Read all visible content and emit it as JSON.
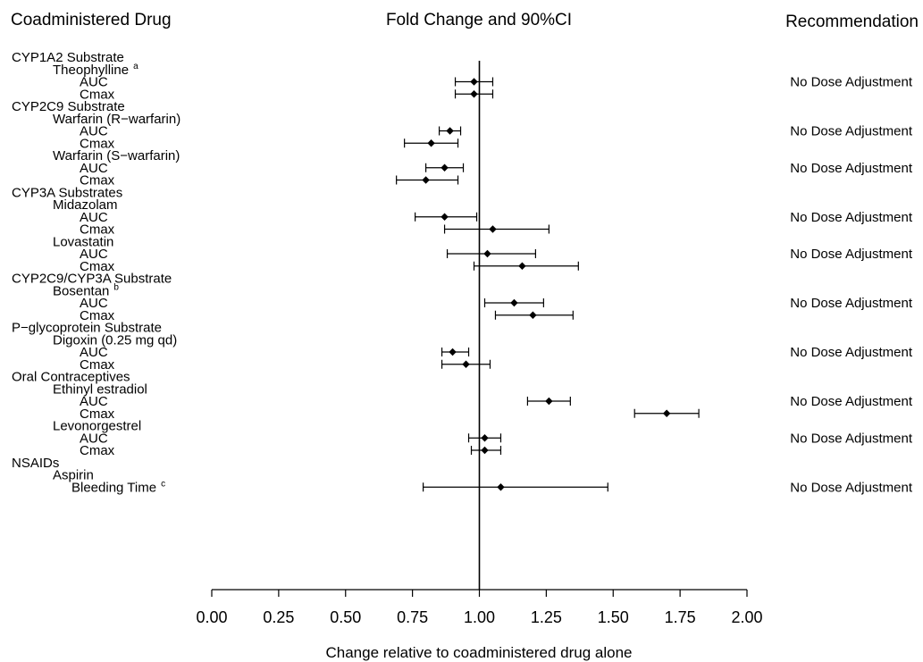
{
  "headers": {
    "left": "Coadministered Drug",
    "center": "Fold Change and 90%CI",
    "right": "Recommendation"
  },
  "chart_data": {
    "type": "forest",
    "xlabel": "Change relative to coadministered drug alone",
    "xlim": [
      0.0,
      2.0
    ],
    "xticks": [
      "0.00",
      "0.25",
      "0.50",
      "0.75",
      "1.00",
      "1.25",
      "1.50",
      "1.75",
      "2.00"
    ],
    "reference_line": 1.0,
    "rows": [
      {
        "label": "CYP1A2 Substrate",
        "level": 0
      },
      {
        "label": "Theophylline",
        "level": 1,
        "sup": "a"
      },
      {
        "label": "AUC",
        "level": 2,
        "est": 0.98,
        "lo": 0.91,
        "hi": 1.05,
        "rec": "No Dose Adjustment"
      },
      {
        "label": "Cmax",
        "level": 2,
        "est": 0.98,
        "lo": 0.91,
        "hi": 1.05
      },
      {
        "label": "CYP2C9 Substrate",
        "level": 0
      },
      {
        "label": "Warfarin (R−warfarin)",
        "level": 1
      },
      {
        "label": "AUC",
        "level": 2,
        "est": 0.89,
        "lo": 0.85,
        "hi": 0.93,
        "rec": "No Dose Adjustment"
      },
      {
        "label": "Cmax",
        "level": 2,
        "est": 0.82,
        "lo": 0.72,
        "hi": 0.92
      },
      {
        "label": "Warfarin (S−warfarin)",
        "level": 1
      },
      {
        "label": "AUC",
        "level": 2,
        "est": 0.87,
        "lo": 0.8,
        "hi": 0.94,
        "rec": "No Dose Adjustment"
      },
      {
        "label": "Cmax",
        "level": 2,
        "est": 0.8,
        "lo": 0.69,
        "hi": 0.92
      },
      {
        "label": "CYP3A Substrates",
        "level": 0
      },
      {
        "label": "Midazolam",
        "level": 1
      },
      {
        "label": "AUC",
        "level": 2,
        "est": 0.87,
        "lo": 0.76,
        "hi": 0.99,
        "rec": "No Dose Adjustment"
      },
      {
        "label": "Cmax",
        "level": 2,
        "est": 1.05,
        "lo": 0.87,
        "hi": 1.26
      },
      {
        "label": "Lovastatin",
        "level": 1
      },
      {
        "label": "AUC",
        "level": 2,
        "est": 1.03,
        "lo": 0.88,
        "hi": 1.21,
        "rec": "No Dose Adjustment"
      },
      {
        "label": "Cmax",
        "level": 2,
        "est": 1.16,
        "lo": 0.98,
        "hi": 1.37
      },
      {
        "label": "CYP2C9/CYP3A Substrate",
        "level": 0
      },
      {
        "label": "Bosentan",
        "level": 1,
        "sup": "b"
      },
      {
        "label": "AUC",
        "level": 2,
        "est": 1.13,
        "lo": 1.02,
        "hi": 1.24,
        "rec": "No Dose Adjustment"
      },
      {
        "label": "Cmax",
        "level": 2,
        "est": 1.2,
        "lo": 1.06,
        "hi": 1.35
      },
      {
        "label": "P−glycoprotein Substrate",
        "level": 0
      },
      {
        "label": "Digoxin (0.25 mg qd)",
        "level": 1
      },
      {
        "label": "AUC",
        "level": 2,
        "est": 0.9,
        "lo": 0.86,
        "hi": 0.96,
        "rec": "No Dose Adjustment"
      },
      {
        "label": "Cmax",
        "level": 2,
        "est": 0.95,
        "lo": 0.86,
        "hi": 1.04
      },
      {
        "label": "Oral Contraceptives",
        "level": 0
      },
      {
        "label": "Ethinyl estradiol",
        "level": 1
      },
      {
        "label": "AUC",
        "level": 2,
        "est": 1.26,
        "lo": 1.18,
        "hi": 1.34,
        "rec": "No Dose Adjustment"
      },
      {
        "label": "Cmax",
        "level": 2,
        "est": 1.7,
        "lo": 1.58,
        "hi": 1.82
      },
      {
        "label": "Levonorgestrel",
        "level": 1
      },
      {
        "label": "AUC",
        "level": 2,
        "est": 1.02,
        "lo": 0.96,
        "hi": 1.08,
        "rec": "No Dose Adjustment"
      },
      {
        "label": "Cmax",
        "level": 2,
        "est": 1.02,
        "lo": 0.97,
        "hi": 1.08
      },
      {
        "label": "NSAIDs",
        "level": 0
      },
      {
        "label": "Aspirin",
        "level": 1
      },
      {
        "label": "Bleeding Time",
        "level": 2,
        "sup": "c",
        "est": 1.08,
        "lo": 0.79,
        "hi": 1.48,
        "rec": "No Dose Adjustment"
      }
    ]
  }
}
